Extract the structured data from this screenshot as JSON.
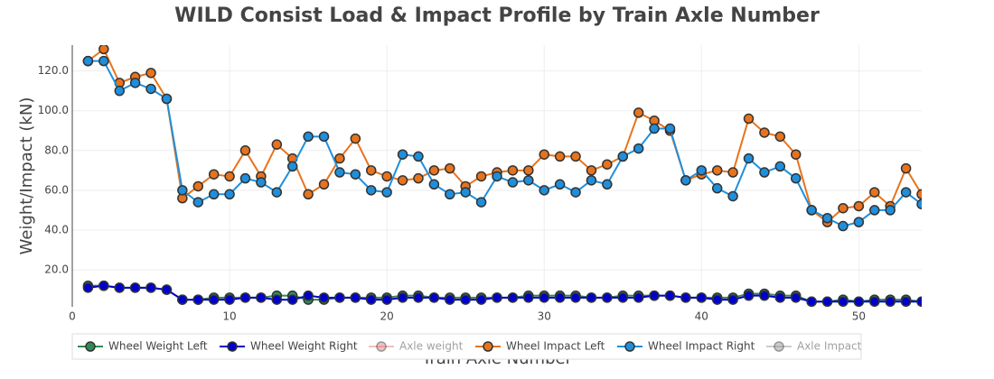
{
  "chart_data": {
    "type": "line",
    "title": "WILD Consist Load & Impact Profile by Train Axle Number",
    "x_label": "Train Axle Number",
    "y_label": "Weight/Impact (kN)",
    "x": [
      1,
      2,
      3,
      4,
      5,
      6,
      7,
      8,
      9,
      10,
      11,
      12,
      13,
      14,
      15,
      16,
      17,
      18,
      19,
      20,
      21,
      22,
      23,
      24,
      25,
      26,
      27,
      28,
      29,
      30,
      31,
      32,
      33,
      34,
      35,
      36,
      37,
      38,
      39,
      40,
      41,
      42,
      43,
      44,
      45,
      46,
      47,
      48,
      49,
      50,
      51,
      52,
      53,
      54
    ],
    "xlim": [
      0,
      54
    ],
    "xticks": [
      0,
      10,
      20,
      30,
      40,
      50
    ],
    "ylim": [
      1.4,
      133
    ],
    "yticks": [
      {
        "value": 20,
        "label": "20.0"
      },
      {
        "value": 40,
        "label": "40.0"
      },
      {
        "value": 60,
        "label": "60.0"
      },
      {
        "value": 80,
        "label": "80.0"
      },
      {
        "value": 100,
        "label": "100.0"
      },
      {
        "value": 120,
        "label": "120.0"
      }
    ],
    "grid": true,
    "legend": "bottom",
    "series": [
      {
        "name": "Wheel Weight Left",
        "color": "#2e8b57",
        "values": [
          12,
          12,
          11,
          11,
          11,
          10,
          5,
          5,
          6,
          6,
          6,
          6,
          7,
          7,
          5,
          5,
          6,
          6,
          6,
          6,
          7,
          7,
          6,
          6,
          6,
          6,
          6,
          6,
          7,
          7,
          7,
          7,
          6,
          6,
          7,
          7,
          7,
          7,
          6,
          6,
          6,
          6,
          8,
          8,
          7,
          7,
          4,
          4,
          5,
          4,
          5,
          5,
          5,
          4
        ]
      },
      {
        "name": "Wheel Weight Right",
        "color": "#0000cd",
        "values": [
          11,
          12,
          11,
          11,
          11,
          10,
          5,
          5,
          5,
          5,
          6,
          6,
          5,
          5,
          7,
          6,
          6,
          6,
          5,
          5,
          6,
          6,
          6,
          5,
          5,
          5,
          6,
          6,
          6,
          6,
          6,
          6,
          6,
          6,
          6,
          6,
          7,
          7,
          6,
          6,
          5,
          5,
          7,
          7,
          6,
          6,
          4,
          4,
          4,
          4,
          4,
          4,
          4,
          4
        ]
      },
      {
        "name": "Axle weight",
        "color": "#e88080",
        "visible": "legendonly"
      },
      {
        "name": "Wheel Impact Left",
        "color": "#e8731c",
        "values": [
          125,
          131,
          114,
          117,
          119,
          106,
          56,
          62,
          68,
          67,
          80,
          67,
          83,
          76,
          58,
          63,
          76,
          86,
          70,
          67,
          65,
          66,
          70,
          71,
          62,
          67,
          69,
          70,
          70,
          78,
          77,
          77,
          70,
          73,
          77,
          99,
          95,
          90,
          65,
          68,
          70,
          69,
          96,
          89,
          87,
          78,
          50,
          44,
          51,
          52,
          59,
          52,
          71,
          58
        ]
      },
      {
        "name": "Wheel Impact Right",
        "color": "#1f8fdc",
        "values": [
          125,
          125,
          110,
          114,
          111,
          106,
          60,
          54,
          58,
          58,
          66,
          64,
          59,
          72,
          87,
          87,
          69,
          68,
          60,
          59,
          78,
          77,
          63,
          58,
          59,
          54,
          67,
          64,
          65,
          60,
          63,
          59,
          65,
          63,
          77,
          81,
          91,
          91,
          65,
          70,
          61,
          57,
          76,
          69,
          72,
          66,
          50,
          46,
          42,
          44,
          50,
          50,
          59,
          53
        ]
      },
      {
        "name": "Axle Impact",
        "color": "#999999",
        "visible": "legendonly"
      }
    ]
  }
}
